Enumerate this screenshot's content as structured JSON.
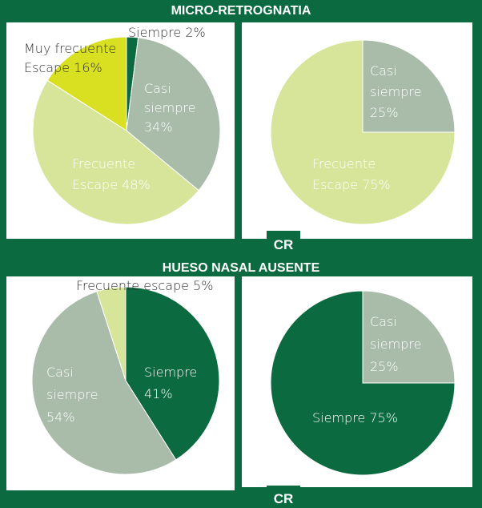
{
  "sections": [
    {
      "title": "MICRO-RETROGNATIA",
      "badge": "CR"
    },
    {
      "title": "HUESO NASAL AUSENTE",
      "badge": "CR"
    }
  ],
  "chart_data": [
    {
      "type": "pie",
      "values": [
        2,
        34,
        48,
        16
      ],
      "value_labels": [
        "Siempre 2%",
        "Casi\nsiempre\n34%",
        "Frecuente\nEscape 48%",
        "Muy frecuente\nEscape 16%"
      ],
      "colors": [
        "#0b6a3f",
        "#a8bca9",
        "#d6e59a",
        "#d9e021"
      ]
    },
    {
      "type": "pie",
      "values": [
        25,
        75
      ],
      "value_labels": [
        "Casi\nsiempre\n25%",
        "Frecuente\nEscape 75%"
      ],
      "colors": [
        "#a8bca9",
        "#d6e59a"
      ]
    },
    {
      "type": "pie",
      "values": [
        41,
        54,
        5
      ],
      "value_labels": [
        "Siempre\n41%",
        "Casi\nsiempre\n54%",
        "Frecuente escape 5%"
      ],
      "colors": [
        "#0b6a3f",
        "#a8bca9",
        "#d6e59a"
      ]
    },
    {
      "type": "pie",
      "values": [
        25,
        75
      ],
      "value_labels": [
        "Casi\nsiempre\n25%",
        "Siempre 75%"
      ],
      "colors": [
        "#a8bca9",
        "#0b6a3f"
      ]
    }
  ]
}
